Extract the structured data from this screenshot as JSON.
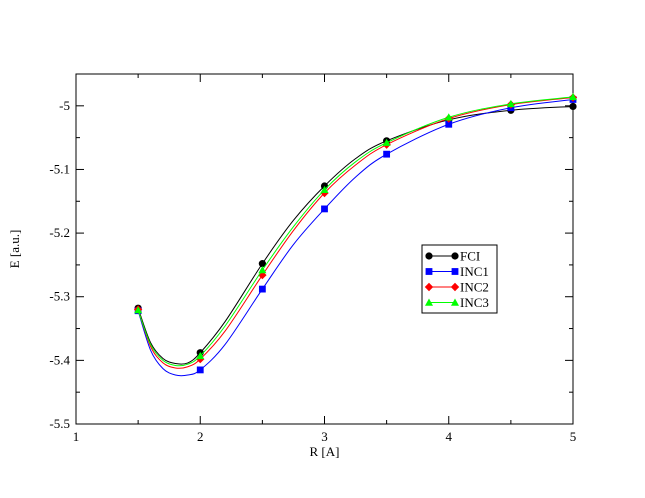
{
  "chart_data": {
    "type": "line",
    "xlabel": "R [A]",
    "ylabel": "E [a.u.]",
    "xlim": [
      1,
      5
    ],
    "ylim": [
      -5.5,
      -4.95
    ],
    "xticks": [
      1,
      2,
      3,
      4,
      5
    ],
    "yticks": [
      -5.5,
      -5.4,
      -5.3,
      -5.2,
      -5.1,
      -5.0
    ],
    "xtick_labels": [
      "1",
      "2",
      "3",
      "4",
      "5"
    ],
    "ytick_labels": [
      "-5.5",
      "-5.4",
      "-5.3",
      "-5.2",
      "-5.1",
      "-5"
    ],
    "grid": false,
    "legend_position": "right-center",
    "series": [
      {
        "name": "FCI",
        "color": "#000000",
        "marker": "circle",
        "x": [
          1.5,
          2.0,
          2.5,
          3.0,
          3.5,
          4.0,
          4.5,
          5.0
        ],
        "y": [
          -5.318,
          -5.388,
          -5.248,
          -5.126,
          -5.055,
          -5.022,
          -5.007,
          -5.001
        ],
        "curve": [
          [
            1.5,
            -5.318
          ],
          [
            1.6,
            -5.372
          ],
          [
            1.7,
            -5.397
          ],
          [
            1.8,
            -5.405
          ],
          [
            1.9,
            -5.404
          ],
          [
            2.0,
            -5.388
          ],
          [
            2.2,
            -5.339
          ],
          [
            2.5,
            -5.248
          ],
          [
            2.75,
            -5.18
          ],
          [
            3.0,
            -5.126
          ],
          [
            3.25,
            -5.083
          ],
          [
            3.5,
            -5.055
          ],
          [
            4.0,
            -5.022
          ],
          [
            4.5,
            -5.007
          ],
          [
            5.0,
            -5.001
          ]
        ]
      },
      {
        "name": "INC1",
        "color": "#0000ff",
        "marker": "square",
        "x": [
          1.5,
          2.0,
          2.5,
          3.0,
          3.5,
          4.0,
          4.5,
          5.0
        ],
        "y": [
          -5.322,
          -5.415,
          -5.288,
          -5.162,
          -5.076,
          -5.029,
          -5.003,
          -4.99
        ],
        "curve": [
          [
            1.5,
            -5.322
          ],
          [
            1.6,
            -5.384
          ],
          [
            1.7,
            -5.413
          ],
          [
            1.8,
            -5.423
          ],
          [
            1.9,
            -5.423
          ],
          [
            2.0,
            -5.415
          ],
          [
            2.2,
            -5.375
          ],
          [
            2.5,
            -5.288
          ],
          [
            2.75,
            -5.218
          ],
          [
            3.0,
            -5.162
          ],
          [
            3.25,
            -5.112
          ],
          [
            3.5,
            -5.076
          ],
          [
            4.0,
            -5.029
          ],
          [
            4.5,
            -5.003
          ],
          [
            5.0,
            -4.99
          ]
        ]
      },
      {
        "name": "INC2",
        "color": "#ff0000",
        "marker": "diamond",
        "x": [
          1.5,
          2.0,
          2.5,
          3.0,
          3.5,
          4.0,
          4.5,
          5.0
        ],
        "y": [
          -5.32,
          -5.398,
          -5.266,
          -5.137,
          -5.061,
          -5.02,
          -4.998,
          -4.987
        ],
        "curve": [
          [
            1.5,
            -5.32
          ],
          [
            1.6,
            -5.378
          ],
          [
            1.7,
            -5.404
          ],
          [
            1.8,
            -5.412
          ],
          [
            1.9,
            -5.41
          ],
          [
            2.0,
            -5.398
          ],
          [
            2.2,
            -5.354
          ],
          [
            2.5,
            -5.266
          ],
          [
            2.75,
            -5.196
          ],
          [
            3.0,
            -5.137
          ],
          [
            3.25,
            -5.093
          ],
          [
            3.5,
            -5.061
          ],
          [
            4.0,
            -5.02
          ],
          [
            4.5,
            -4.998
          ],
          [
            5.0,
            -4.987
          ]
        ]
      },
      {
        "name": "INC3",
        "color": "#00ff00",
        "marker": "triangle",
        "x": [
          1.5,
          2.0,
          2.5,
          3.0,
          3.5,
          4.0,
          4.5,
          5.0
        ],
        "y": [
          -5.321,
          -5.393,
          -5.258,
          -5.132,
          -5.058,
          -5.018,
          -4.997,
          -4.986
        ],
        "curve": [
          [
            1.5,
            -5.321
          ],
          [
            1.6,
            -5.375
          ],
          [
            1.7,
            -5.4
          ],
          [
            1.8,
            -5.408
          ],
          [
            1.9,
            -5.406
          ],
          [
            2.0,
            -5.393
          ],
          [
            2.2,
            -5.346
          ],
          [
            2.5,
            -5.258
          ],
          [
            2.75,
            -5.19
          ],
          [
            3.0,
            -5.132
          ],
          [
            3.25,
            -5.088
          ],
          [
            3.5,
            -5.058
          ],
          [
            4.0,
            -5.018
          ],
          [
            4.5,
            -4.997
          ],
          [
            5.0,
            -4.986
          ]
        ]
      }
    ]
  }
}
